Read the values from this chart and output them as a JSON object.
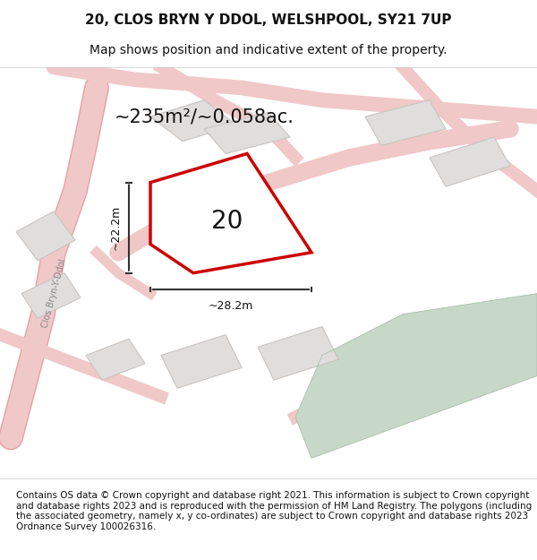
{
  "title_line1": "20, CLOS BRYN Y DDOL, WELSHPOOL, SY21 7UP",
  "title_line2": "Map shows position and indicative extent of the property.",
  "area_text": "~235m²/~0.058ac.",
  "label_number": "20",
  "dim_vertical": "~22.2m",
  "dim_horizontal": "~28.2m",
  "street_label": "Clos Bryn-Y-Ddol",
  "footer_text": "Contains OS data © Crown copyright and database right 2021. This information is subject to Crown copyright and database rights 2023 and is reproduced with the permission of HM Land Registry. The polygons (including the associated geometry, namely x, y co-ordinates) are subject to Crown copyright and database rights 2023 Ordnance Survey 100026316.",
  "bg_color": "#f5f3f0",
  "map_bg": "#f8f7f4",
  "road_color": "#f0c8c8",
  "road_outline": "#e8a0a0",
  "building_fill": "#e0dedd",
  "building_outline": "#c8c4c0",
  "plot_color": "#cc0000",
  "plot_fill": "#ffffff",
  "green_fill": "#c8d8c8",
  "dim_line_color": "#333333",
  "text_color": "#111111",
  "title_fontsize": 11,
  "subtitle_fontsize": 10,
  "area_fontsize": 16,
  "number_fontsize": 20,
  "footer_fontsize": 7.5
}
